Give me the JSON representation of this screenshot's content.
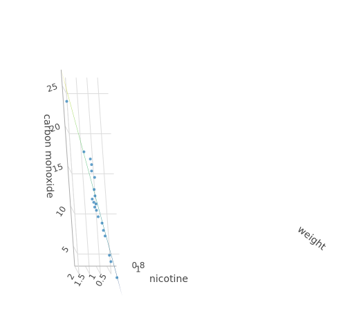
{
  "chart_data": {
    "type": "scatter3d",
    "surface": {
      "type": "plane",
      "colorscale": "viridis"
    },
    "axes": {
      "x": {
        "title": "nicotine",
        "ticks": [
          "2",
          "1.5",
          "1",
          "0.5"
        ],
        "tick_values": [
          2,
          1.5,
          1,
          0.5
        ]
      },
      "y": {
        "title": "weight",
        "ticks": [
          "1",
          "0.8"
        ],
        "tick_values": [
          1,
          0.8
        ]
      },
      "z": {
        "title": "carbon monoxide",
        "ticks": [
          "25",
          "20",
          "15",
          "10",
          "5"
        ],
        "tick_values": [
          25,
          20,
          15,
          10,
          5
        ]
      }
    },
    "points": [
      {
        "nicotine": 1.92,
        "weight": 0.9,
        "co": 23.5
      },
      {
        "nicotine": 1.28,
        "weight": 0.9,
        "co": 17.2
      },
      {
        "nicotine": 1.02,
        "weight": 0.92,
        "co": 16.4
      },
      {
        "nicotine": 1.0,
        "weight": 0.92,
        "co": 14.9
      },
      {
        "nicotine": 0.98,
        "weight": 0.92,
        "co": 15.7
      },
      {
        "nicotine": 0.88,
        "weight": 0.92,
        "co": 14.1
      },
      {
        "nicotine": 0.94,
        "weight": 0.92,
        "co": 12.6
      },
      {
        "nicotine": 0.92,
        "weight": 0.92,
        "co": 11.8
      },
      {
        "nicotine": 1.06,
        "weight": 0.92,
        "co": 11.4
      },
      {
        "nicotine": 1.0,
        "weight": 0.92,
        "co": 11.0
      },
      {
        "nicotine": 0.97,
        "weight": 0.92,
        "co": 10.4
      },
      {
        "nicotine": 0.9,
        "weight": 0.92,
        "co": 10.8
      },
      {
        "nicotine": 0.9,
        "weight": 0.92,
        "co": 10.0
      },
      {
        "nicotine": 0.84,
        "weight": 0.92,
        "co": 9.2
      },
      {
        "nicotine": 0.68,
        "weight": 0.92,
        "co": 8.4
      },
      {
        "nicotine": 0.64,
        "weight": 0.92,
        "co": 7.5
      },
      {
        "nicotine": 0.58,
        "weight": 0.92,
        "co": 6.8
      },
      {
        "nicotine": 0.44,
        "weight": 0.92,
        "co": 4.4
      },
      {
        "nicotine": 0.39,
        "weight": 0.92,
        "co": 3.6
      },
      {
        "nicotine": 0.16,
        "weight": 0.92,
        "co": 1.6
      }
    ]
  }
}
